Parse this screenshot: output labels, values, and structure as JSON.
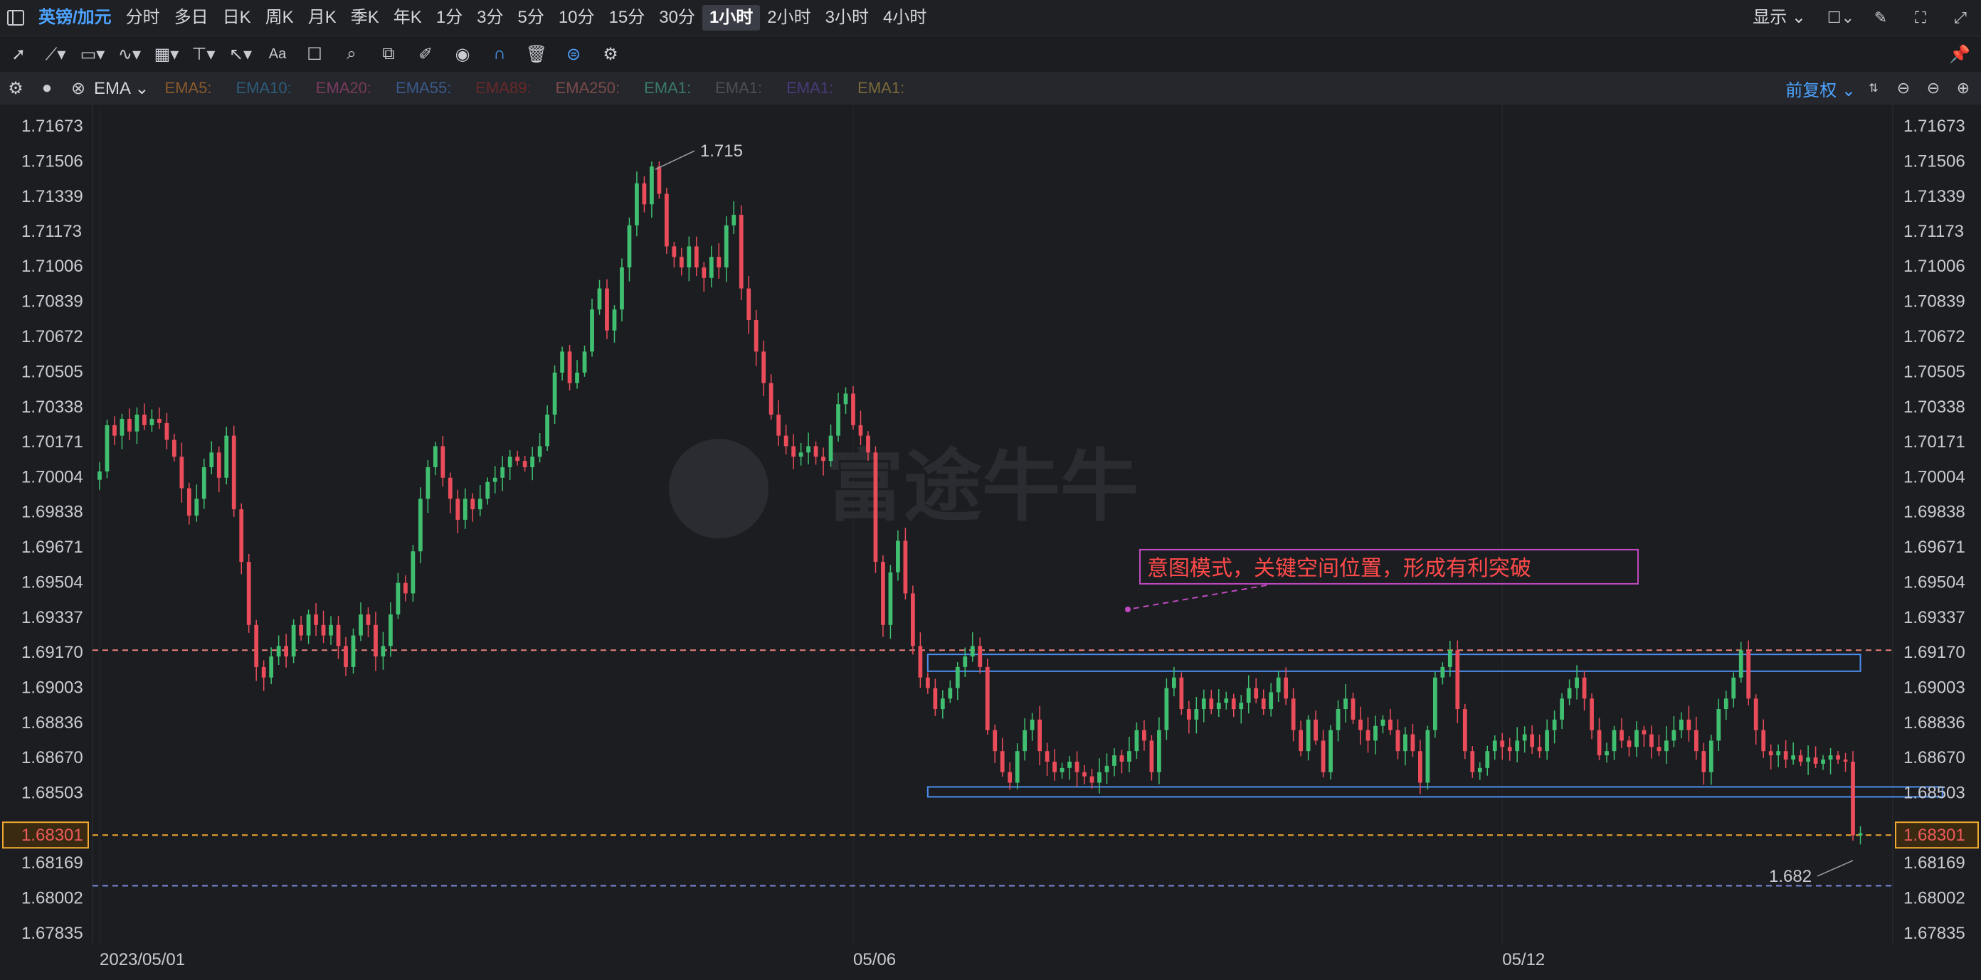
{
  "toolbar": {
    "symbol": "英镑/加元",
    "periods": [
      "分时",
      "多日",
      "日K",
      "周K",
      "月K",
      "季K",
      "年K",
      "1分",
      "3分",
      "5分",
      "10分",
      "15分",
      "30分",
      "1小时",
      "2小时",
      "3小时",
      "4小时"
    ],
    "active_period": "1小时",
    "display_label": "显示"
  },
  "indicator_bar": {
    "indicator": "EMA",
    "ema_items": [
      {
        "label": "EMA5:",
        "color": "#8a5a2b"
      },
      {
        "label": "EMA10:",
        "color": "#2e5c7a"
      },
      {
        "label": "EMA20:",
        "color": "#7a3a5e"
      },
      {
        "label": "EMA55:",
        "color": "#3a5a8a"
      },
      {
        "label": "EMA89:",
        "color": "#6a2828"
      },
      {
        "label": "EMA250:",
        "color": "#7a4a4a"
      },
      {
        "label": "EMA1:",
        "color": "#3a7a6a"
      },
      {
        "label": "EMA1:",
        "color": "#4a4f58"
      },
      {
        "label": "EMA1:",
        "color": "#4a3a7a"
      },
      {
        "label": "EMA1:",
        "color": "#7a6a3a"
      }
    ],
    "adjust_label": "前复权"
  },
  "chart_data": {
    "type": "candlestick",
    "y_ticks": [
      "1.71673",
      "1.71506",
      "1.71339",
      "1.71173",
      "1.71006",
      "1.70839",
      "1.70672",
      "1.70505",
      "1.70338",
      "1.70171",
      "1.70004",
      "1.69838",
      "1.69671",
      "1.69504",
      "1.69337",
      "1.69170",
      "1.69003",
      "1.68836",
      "1.68670",
      "1.68503",
      "1.68301",
      "1.68169",
      "1.68002",
      "1.67835"
    ],
    "ylim": [
      1.67835,
      1.71673
    ],
    "x_labels": [
      {
        "label": "2023/05/01",
        "index": 0
      },
      {
        "label": "05/06",
        "index": 101
      },
      {
        "label": "05/12",
        "index": 188
      }
    ],
    "current_price": "1.68301",
    "high_label": "1.715",
    "low_label": "1.682",
    "annotation": "意图模式，关键空间位置，形成有利突破",
    "watermark": "富途牛牛",
    "h_lines": [
      {
        "value": 1.6918,
        "color": "#e8827a"
      },
      {
        "value": 1.68301,
        "color": "#f0a830"
      },
      {
        "value": 1.6806,
        "color": "#7a88d8"
      }
    ],
    "boxes": [
      {
        "from_index": 111,
        "to_index": 236,
        "top": 1.6916,
        "bottom": 1.6908,
        "color": "#4a8ef0"
      },
      {
        "from_index": 111,
        "to_index": 247,
        "top": 1.6853,
        "bottom": 1.685,
        "color": "#4a8ef0"
      }
    ],
    "closes": [
      1.7003,
      1.7025,
      1.702,
      1.7028,
      1.7022,
      1.703,
      1.7025,
      1.7028,
      1.7026,
      1.7018,
      1.701,
      1.6995,
      1.6982,
      1.699,
      1.7005,
      1.7012,
      1.7,
      1.702,
      1.6985,
      1.696,
      1.693,
      1.691,
      1.6905,
      1.6915,
      1.692,
      1.6915,
      1.693,
      1.6925,
      1.6935,
      1.693,
      1.6925,
      1.693,
      1.692,
      1.691,
      1.6925,
      1.6935,
      1.693,
      1.6915,
      1.692,
      1.6935,
      1.695,
      1.6945,
      1.6965,
      1.699,
      1.7005,
      1.7015,
      1.7,
      1.699,
      1.698,
      1.699,
      1.6985,
      1.699,
      1.6998,
      1.7,
      1.7005,
      1.701,
      1.7008,
      1.7005,
      1.701,
      1.7015,
      1.703,
      1.705,
      1.706,
      1.7045,
      1.705,
      1.706,
      1.708,
      1.709,
      1.707,
      1.708,
      1.71,
      1.712,
      1.714,
      1.713,
      1.7148,
      1.7135,
      1.711,
      1.7105,
      1.71,
      1.711,
      1.71,
      1.7095,
      1.7105,
      1.71,
      1.712,
      1.7125,
      1.709,
      1.7075,
      1.706,
      1.7045,
      1.703,
      1.702,
      1.7015,
      1.701,
      1.7012,
      1.7015,
      1.701,
      1.7008,
      1.702,
      1.7035,
      1.704,
      1.7025,
      1.702,
      1.7012,
      1.696,
      1.693,
      1.6955,
      1.697,
      1.6945,
      1.692,
      1.6905,
      1.69,
      1.689,
      1.6895,
      1.69,
      1.691,
      1.6915,
      1.692,
      1.691,
      1.688,
      1.687,
      1.686,
      1.6855,
      1.687,
      1.688,
      1.6885,
      1.687,
      1.6865,
      1.686,
      1.6862,
      1.6865,
      1.686,
      1.6858,
      1.6855,
      1.686,
      1.6863,
      1.6868,
      1.6865,
      1.687,
      1.688,
      1.6875,
      1.686,
      1.688,
      1.69,
      1.6905,
      1.689,
      1.6885,
      1.689,
      1.6895,
      1.689,
      1.6893,
      1.6895,
      1.689,
      1.6893,
      1.69,
      1.6895,
      1.689,
      1.6898,
      1.6905,
      1.6895,
      1.688,
      1.687,
      1.6885,
      1.6875,
      1.686,
      1.688,
      1.689,
      1.6895,
      1.6885,
      1.688,
      1.6875,
      1.6882,
      1.6885,
      1.688,
      1.687,
      1.6878,
      1.687,
      1.6855,
      1.688,
      1.6905,
      1.691,
      1.6918,
      1.689,
      1.687,
      1.686,
      1.6862,
      1.687,
      1.6875,
      1.6872,
      1.687,
      1.6875,
      1.6878,
      1.6872,
      1.687,
      1.688,
      1.6885,
      1.6895,
      1.69,
      1.6905,
      1.6895,
      1.688,
      1.6868,
      1.687,
      1.688,
      1.6875,
      1.6872,
      1.688,
      1.6878,
      1.6872,
      1.687,
      1.6875,
      1.688,
      1.6885,
      1.688,
      1.687,
      1.686,
      1.6875,
      1.689,
      1.6895,
      1.6905,
      1.6918,
      1.6895,
      1.688,
      1.687,
      1.6868,
      1.687,
      1.6866,
      1.6868,
      1.6865,
      1.6867,
      1.6864,
      1.6866,
      1.6868,
      1.6866,
      1.6865,
      1.683,
      1.6831
    ]
  }
}
